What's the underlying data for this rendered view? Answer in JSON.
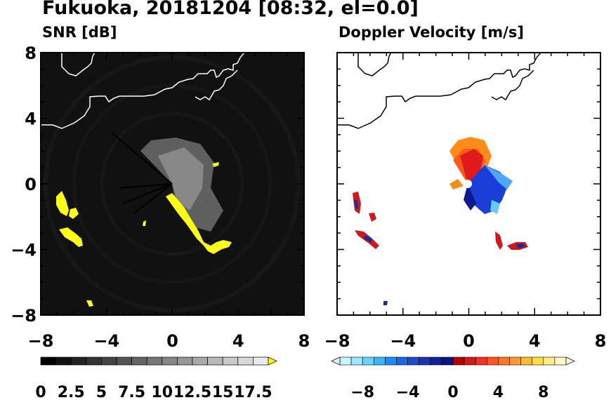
{
  "header": {
    "title": "Fukuoka, 20181204 [08:32, el=0.0]"
  },
  "panels": {
    "snr": {
      "title": "SNR [dB]"
    },
    "doppler": {
      "title": "Doppler Velocity [m/s]"
    }
  },
  "axis_ticks": [
    "-8",
    "−4",
    "0",
    "4",
    "8"
  ],
  "axis_ticks_left": [
    "8",
    "4",
    "0",
    "−4",
    "−8"
  ],
  "colorbars": {
    "snr_ticks": [
      "0",
      "2.5",
      "5",
      "7.5",
      "10",
      "12.5",
      "15",
      "17.5"
    ],
    "doppler_ticks": [
      "−8",
      "−4",
      "0",
      "4",
      "8"
    ]
  },
  "chart_data": [
    {
      "type": "heatmap",
      "title": "SNR [dB]",
      "xlim": [
        -8,
        8
      ],
      "ylim": [
        -8,
        8
      ],
      "colorbar": {
        "min": 0,
        "max": 18.75,
        "step": 1.25,
        "extend": "max",
        "colormap": "gray"
      },
      "coastline_color": "#ffffff",
      "echo_color": "#ffff00"
    },
    {
      "type": "heatmap",
      "title": "Doppler Velocity [m/s]",
      "xlim": [
        -8,
        8
      ],
      "ylim": [
        -8,
        8
      ],
      "colorbar": {
        "min": -10,
        "max": 10,
        "step": 1,
        "extend": "both",
        "colormap": "blue-white-red"
      },
      "coastline_color": "#000000"
    }
  ]
}
